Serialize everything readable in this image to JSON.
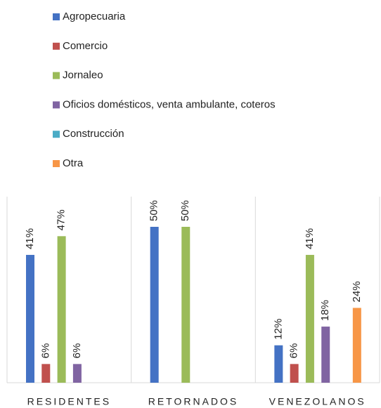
{
  "chart_data": {
    "type": "bar",
    "categories": [
      "RESIDENTES",
      "RETORNADOS",
      "VENEZOLANOS"
    ],
    "series": [
      {
        "name": "Agropecuaria",
        "color": "#4472c4",
        "values": [
          41,
          50,
          12
        ],
        "value_labels": [
          "41%",
          "50%",
          "12%"
        ]
      },
      {
        "name": "Comercio",
        "color": "#c0504d",
        "values": [
          6,
          null,
          6
        ],
        "value_labels": [
          "6%",
          null,
          "6%"
        ]
      },
      {
        "name": "Jornaleo",
        "color": "#9bbb59",
        "values": [
          47,
          50,
          41
        ],
        "value_labels": [
          "47%",
          "50%",
          "41%"
        ]
      },
      {
        "name": "Oficios domésticos, venta ambulante, coteros",
        "color": "#8064a2",
        "values": [
          6,
          null,
          18
        ],
        "value_labels": [
          "6%",
          null,
          "18%"
        ]
      },
      {
        "name": "Construcción",
        "color": "#4bacc6",
        "values": [
          null,
          null,
          null
        ],
        "value_labels": [
          null,
          null,
          null
        ]
      },
      {
        "name": "Otra",
        "color": "#f79646",
        "values": [
          null,
          null,
          24
        ],
        "value_labels": [
          null,
          null,
          "24%"
        ]
      }
    ],
    "legend": "top"
  }
}
